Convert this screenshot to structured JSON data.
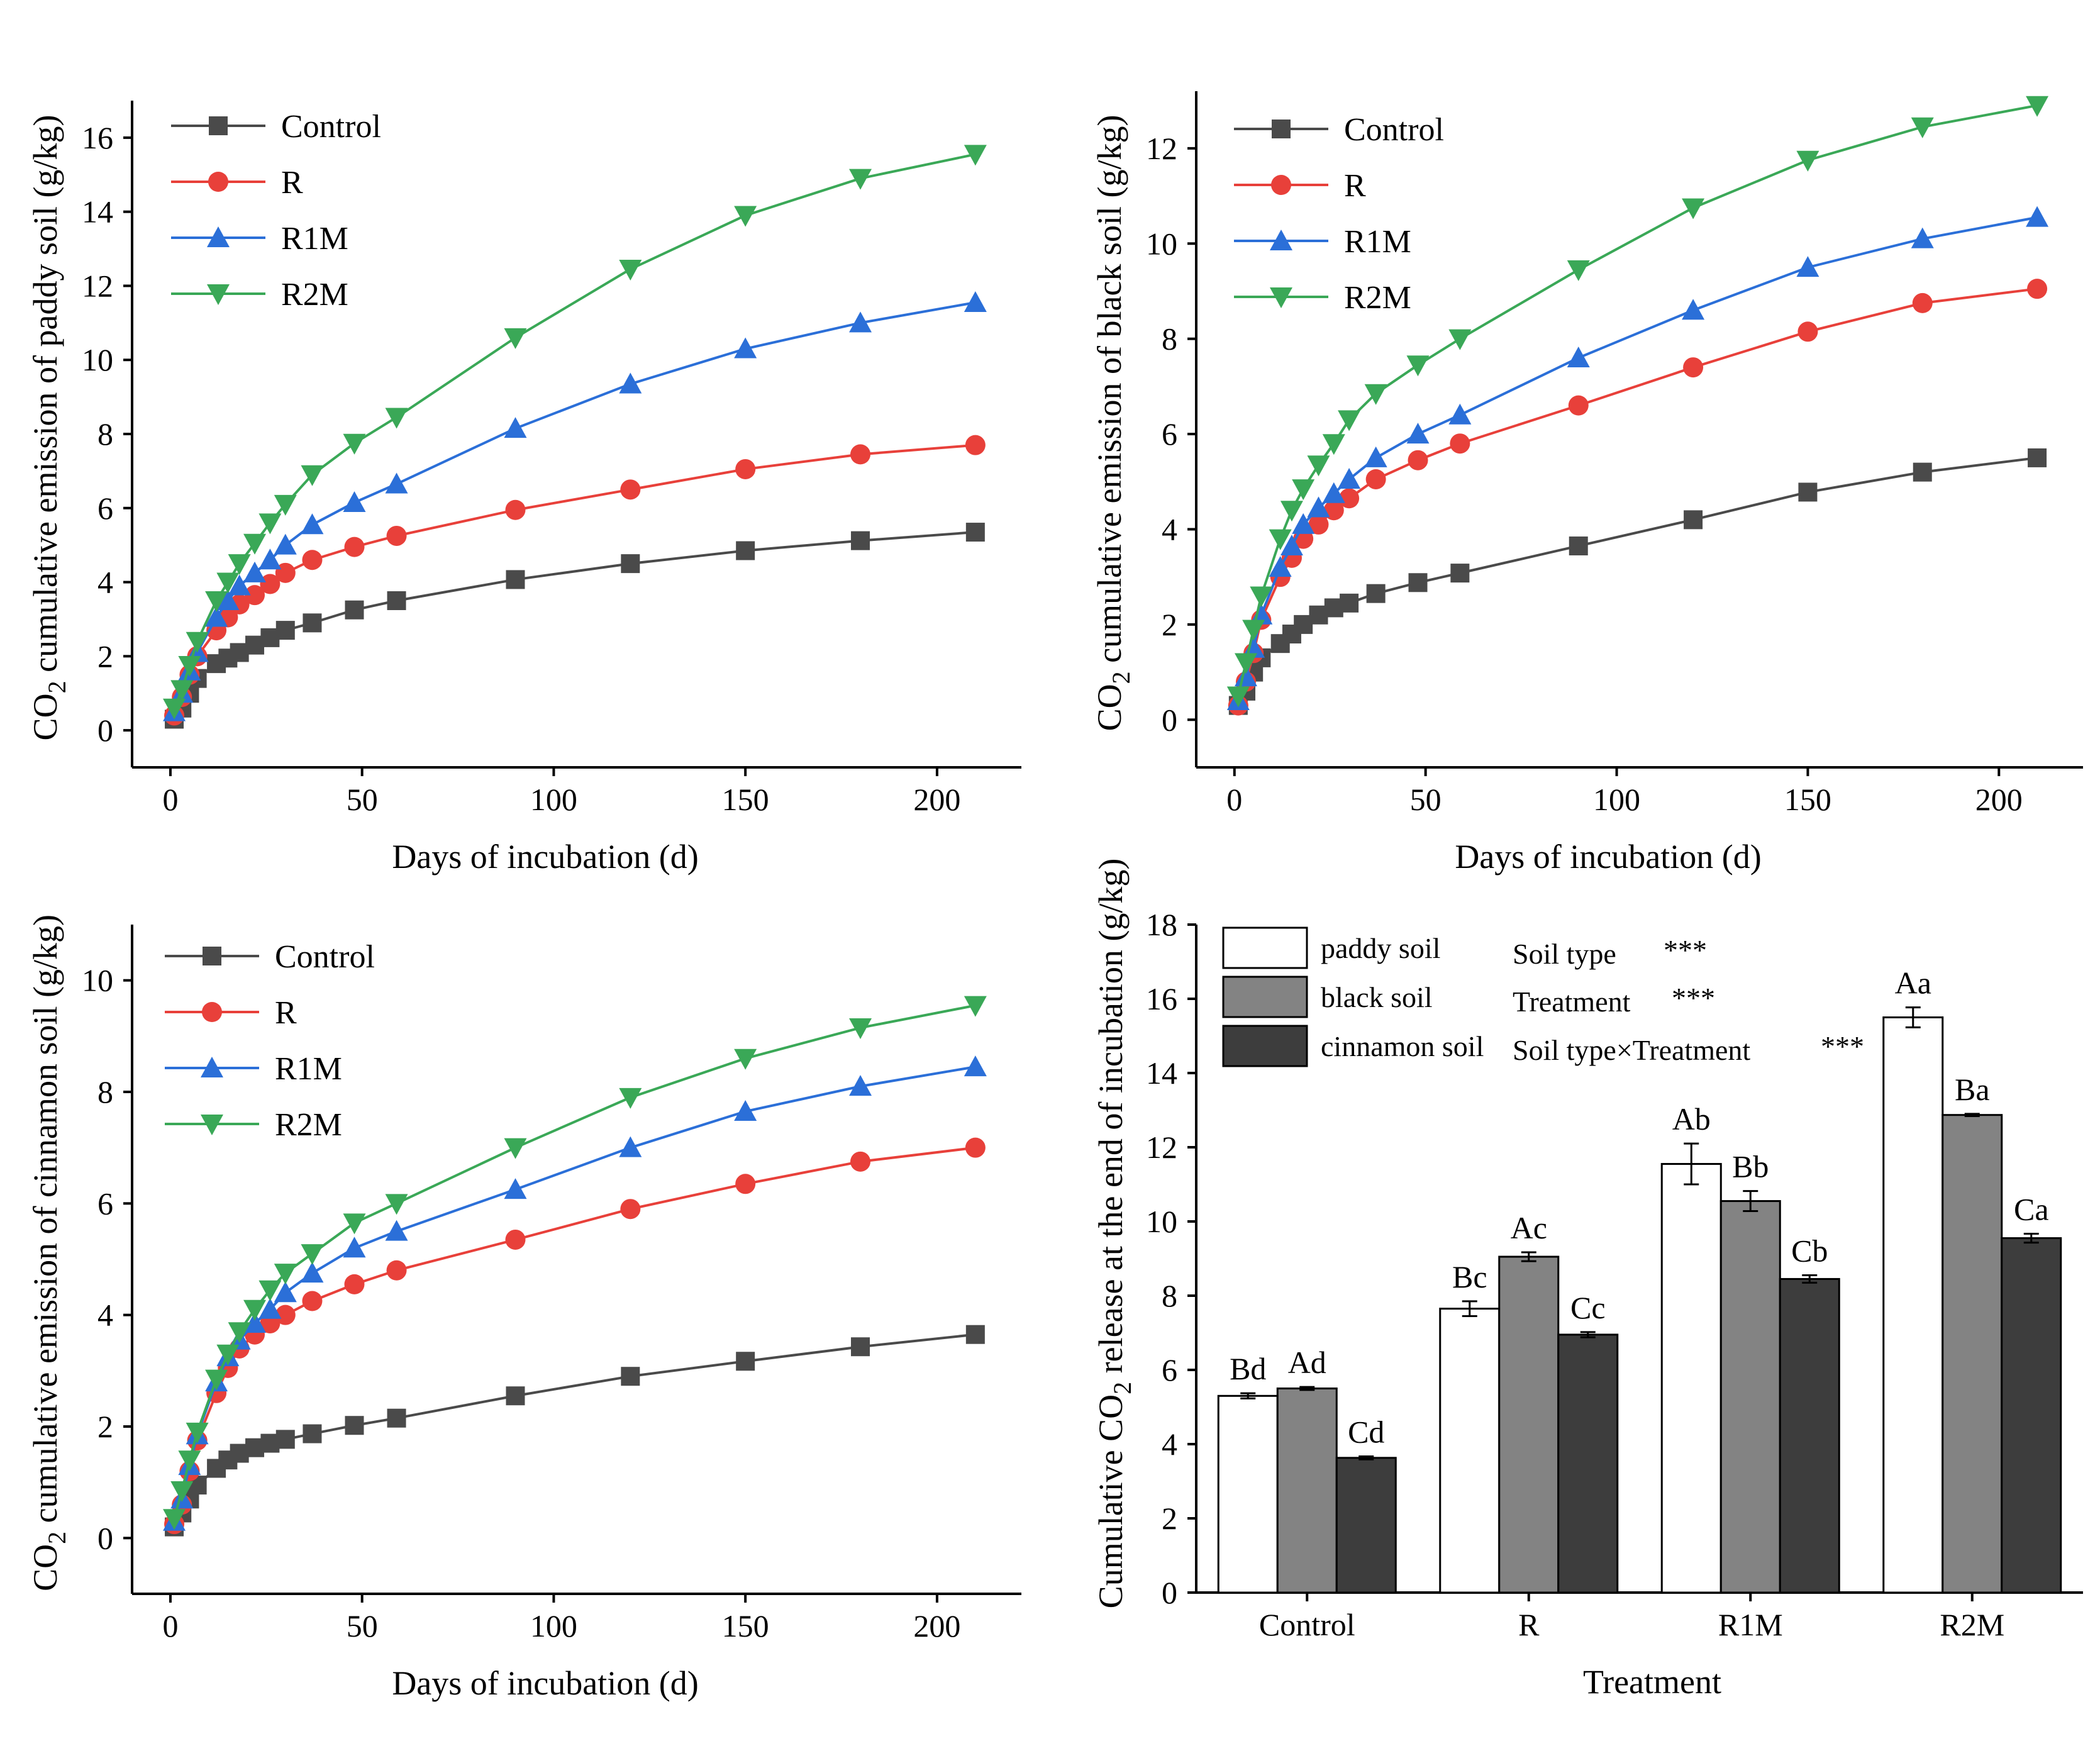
{
  "chart_data": [
    {
      "type": "line",
      "id": "paddy",
      "xlabel": "Days of incubation (d)",
      "ylabel_pre": "CO",
      "ylabel_sub": "2",
      "ylabel_post": " cumulative emission of paddy soil (g/kg)",
      "xlim": [
        -10,
        222
      ],
      "ylim": [
        -1,
        17
      ],
      "xticks": [
        0,
        50,
        100,
        150,
        200
      ],
      "yticks": [
        0,
        2,
        4,
        6,
        8,
        10,
        12,
        14,
        16
      ],
      "x": [
        1,
        3,
        5,
        7,
        12,
        15,
        18,
        22,
        26,
        30,
        37,
        48,
        59,
        90,
        120,
        150,
        180,
        210
      ],
      "series": [
        {
          "name": "Control",
          "color": "#4a4a4a",
          "marker": "square",
          "values": [
            0.3,
            0.6,
            1.0,
            1.4,
            1.8,
            1.95,
            2.1,
            2.3,
            2.5,
            2.7,
            2.9,
            3.25,
            3.5,
            4.07,
            4.5,
            4.85,
            5.12,
            5.35
          ]
        },
        {
          "name": "R",
          "color": "#e8403a",
          "marker": "circle",
          "values": [
            0.4,
            0.9,
            1.5,
            2.0,
            2.7,
            3.05,
            3.4,
            3.65,
            3.95,
            4.25,
            4.6,
            4.95,
            5.25,
            5.95,
            6.5,
            7.05,
            7.45,
            7.7
          ]
        },
        {
          "name": "R1M",
          "color": "#2b6fd8",
          "marker": "triangle-up",
          "values": [
            0.5,
            1.0,
            1.6,
            2.1,
            3.05,
            3.5,
            3.9,
            4.25,
            4.6,
            5.0,
            5.55,
            6.15,
            6.65,
            8.15,
            9.35,
            10.3,
            11.0,
            11.55
          ]
        },
        {
          "name": "R2M",
          "color": "#3aa857",
          "marker": "triangle-down",
          "values": [
            0.6,
            1.1,
            1.75,
            2.4,
            3.5,
            4.0,
            4.5,
            5.05,
            5.6,
            6.1,
            6.9,
            7.75,
            8.45,
            10.6,
            12.45,
            13.9,
            14.9,
            15.55
          ]
        }
      ]
    },
    {
      "type": "line",
      "id": "black",
      "xlabel": "Days of incubation (d)",
      "ylabel_pre": "CO",
      "ylabel_sub": "2",
      "ylabel_post": " cumulative emission of black soil (g/kg)",
      "xlim": [
        -10,
        222
      ],
      "ylim": [
        -1,
        13.2
      ],
      "xticks": [
        0,
        50,
        100,
        150,
        200
      ],
      "yticks": [
        0,
        2,
        4,
        6,
        8,
        10,
        12
      ],
      "x": [
        1,
        3,
        5,
        7,
        12,
        15,
        18,
        22,
        26,
        30,
        37,
        48,
        59,
        90,
        120,
        150,
        180,
        210
      ],
      "series": [
        {
          "name": "Control",
          "color": "#4a4a4a",
          "marker": "square",
          "values": [
            0.3,
            0.6,
            1.0,
            1.3,
            1.6,
            1.8,
            2.0,
            2.2,
            2.35,
            2.45,
            2.65,
            2.88,
            3.08,
            3.65,
            4.2,
            4.78,
            5.2,
            5.5
          ]
        },
        {
          "name": "R",
          "color": "#e8403a",
          "marker": "circle",
          "values": [
            0.3,
            0.8,
            1.4,
            2.1,
            3.0,
            3.4,
            3.8,
            4.1,
            4.4,
            4.65,
            5.05,
            5.45,
            5.8,
            6.6,
            7.4,
            8.15,
            8.75,
            9.05
          ]
        },
        {
          "name": "R1M",
          "color": "#2b6fd8",
          "marker": "triangle-up",
          "values": [
            0.4,
            0.9,
            1.5,
            2.2,
            3.2,
            3.65,
            4.1,
            4.45,
            4.75,
            5.05,
            5.5,
            6.0,
            6.4,
            7.6,
            8.6,
            9.5,
            10.1,
            10.55
          ]
        },
        {
          "name": "R2M",
          "color": "#3aa857",
          "marker": "triangle-down",
          "values": [
            0.5,
            1.2,
            1.9,
            2.6,
            3.8,
            4.4,
            4.85,
            5.35,
            5.8,
            6.3,
            6.85,
            7.45,
            8.0,
            9.45,
            10.75,
            11.75,
            12.45,
            12.9
          ]
        }
      ]
    },
    {
      "type": "line",
      "id": "cinnamon",
      "xlabel": "Days of incubation (d)",
      "ylabel_pre": "CO",
      "ylabel_sub": "2",
      "ylabel_post": " cumulative emission of cinnamon soil (g/kg)",
      "xlim": [
        -10,
        222
      ],
      "ylim": [
        -1,
        11
      ],
      "xticks": [
        0,
        50,
        100,
        150,
        200
      ],
      "yticks": [
        0,
        2,
        4,
        6,
        8,
        10
      ],
      "x": [
        1,
        3,
        5,
        7,
        12,
        15,
        18,
        22,
        26,
        30,
        37,
        48,
        59,
        90,
        120,
        150,
        180,
        210
      ],
      "series": [
        {
          "name": "Control",
          "color": "#4a4a4a",
          "marker": "square",
          "values": [
            0.2,
            0.45,
            0.7,
            0.95,
            1.25,
            1.4,
            1.52,
            1.62,
            1.7,
            1.77,
            1.87,
            2.02,
            2.15,
            2.55,
            2.9,
            3.17,
            3.43,
            3.65
          ]
        },
        {
          "name": "R",
          "color": "#e8403a",
          "marker": "circle",
          "values": [
            0.25,
            0.6,
            1.2,
            1.75,
            2.6,
            3.05,
            3.4,
            3.65,
            3.85,
            4.0,
            4.25,
            4.55,
            4.8,
            5.35,
            5.9,
            6.35,
            6.75,
            7.0
          ]
        },
        {
          "name": "R1M",
          "color": "#2b6fd8",
          "marker": "triangle-up",
          "values": [
            0.3,
            0.7,
            1.3,
            1.85,
            2.8,
            3.25,
            3.55,
            3.85,
            4.1,
            4.4,
            4.75,
            5.2,
            5.5,
            6.25,
            7.0,
            7.65,
            8.1,
            8.45
          ]
        },
        {
          "name": "R2M",
          "color": "#3aa857",
          "marker": "triangle-down",
          "values": [
            0.35,
            0.85,
            1.4,
            1.9,
            2.85,
            3.3,
            3.7,
            4.1,
            4.45,
            4.75,
            5.1,
            5.65,
            6.0,
            7.0,
            7.9,
            8.6,
            9.15,
            9.55
          ]
        }
      ]
    },
    {
      "type": "bar",
      "id": "final",
      "xlabel": "Treatment",
      "ylabel_pre": "Cumulative CO",
      "ylabel_sub": "2",
      "ylabel_post": " release at the end of incubation (g/kg)",
      "ylim": [
        0,
        18
      ],
      "yticks": [
        0,
        2,
        4,
        6,
        8,
        10,
        12,
        14,
        16,
        18
      ],
      "categories": [
        "Control",
        "R",
        "R1M",
        "R2M"
      ],
      "series": [
        {
          "name": "paddy soil",
          "color": "#ffffff",
          "values": [
            5.3,
            7.65,
            11.55,
            15.5
          ],
          "errors": [
            0.07,
            0.2,
            0.55,
            0.27
          ],
          "labels": [
            "Bd",
            "Bc",
            "Ab",
            "Aa"
          ]
        },
        {
          "name": "black soil",
          "color": "#838383",
          "values": [
            5.5,
            9.05,
            10.55,
            12.87
          ],
          "errors": [
            0.04,
            0.12,
            0.27,
            0.03
          ],
          "labels": [
            "Ad",
            "Ac",
            "Bb",
            "Ba"
          ]
        },
        {
          "name": "cinnamon soil",
          "color": "#3d3d3d",
          "values": [
            3.63,
            6.95,
            8.45,
            9.55
          ],
          "errors": [
            0.04,
            0.07,
            0.1,
            0.12
          ],
          "labels": [
            "Cd",
            "Cc",
            "Cb",
            "Ca"
          ]
        }
      ],
      "stats": [
        {
          "label": "Soil type",
          "sig": "***"
        },
        {
          "label": "Treatment",
          "sig": "***"
        },
        {
          "label": "Soil type×Treatment",
          "sig": "***"
        }
      ]
    }
  ]
}
